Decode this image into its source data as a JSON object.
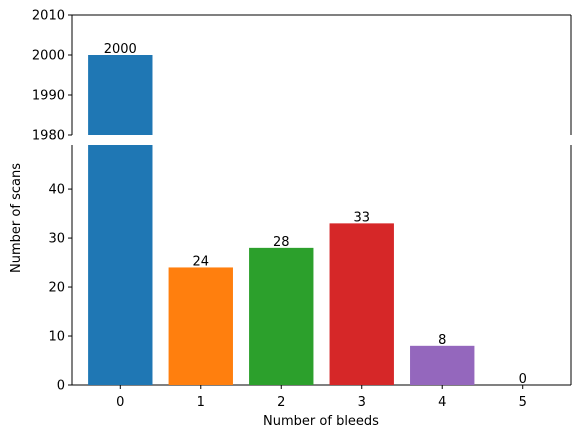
{
  "chart_data": {
    "type": "bar",
    "broken_y_axis": true,
    "categories": [
      "0",
      "1",
      "2",
      "3",
      "4",
      "5"
    ],
    "values": [
      2000,
      24,
      28,
      33,
      8,
      0
    ],
    "colors": [
      "#1f77b4",
      "#ff7f0e",
      "#2ca02c",
      "#d62728",
      "#9467bd",
      "#8c564b"
    ],
    "data_labels": [
      "2000",
      "24",
      "28",
      "33",
      "8",
      "0"
    ],
    "xlabel": "Number of bleeds",
    "ylabel": "Number of scans",
    "upper_ylim": [
      1980,
      2010
    ],
    "upper_yticks": [
      "1980",
      "1990",
      "2000",
      "2010"
    ],
    "lower_ylim": [
      0,
      49
    ],
    "lower_yticks": [
      "0",
      "10",
      "20",
      "30",
      "40"
    ],
    "grid": false,
    "legend": "none"
  }
}
